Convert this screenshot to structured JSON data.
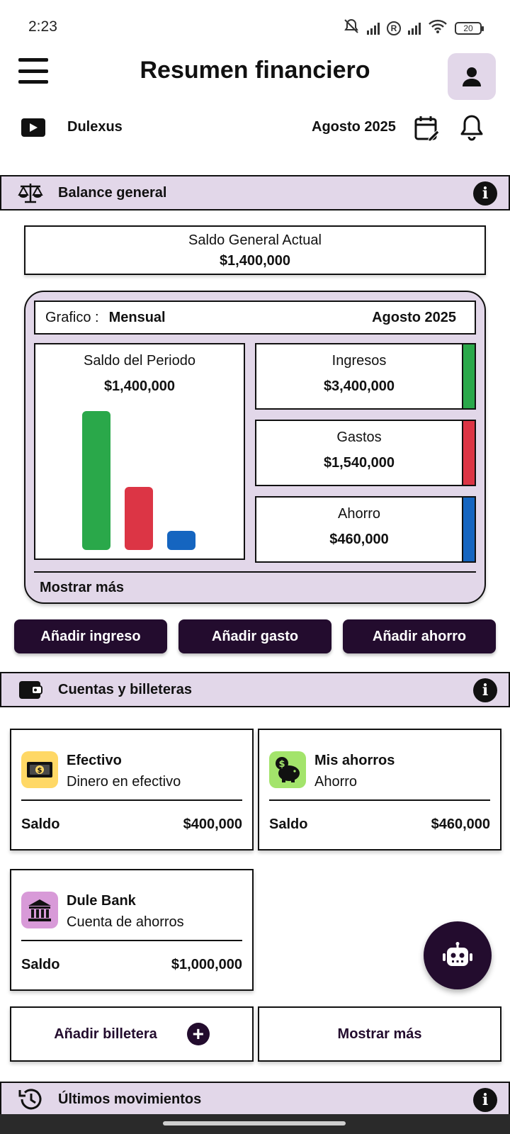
{
  "status_bar": {
    "time": "2:23",
    "battery": "20"
  },
  "header": {
    "title": "Resumen financiero"
  },
  "user": {
    "name": "Dulexus",
    "period": "Agosto 2025"
  },
  "balance_section": {
    "title": "Balance general",
    "current_label": "Saldo General Actual",
    "current_value": "$1,400,000",
    "chart": {
      "grafico_label": "Grafico :",
      "grafico_type": "Mensual",
      "period": "Agosto  2025",
      "saldo_label": "Saldo del Periodo",
      "saldo_value": "$1,400,000",
      "stats": [
        {
          "label": "Ingresos",
          "value": "$3,400,000",
          "color": "#2aa84a"
        },
        {
          "label": "Gastos",
          "value": "$1,540,000",
          "color": "#dc3545"
        },
        {
          "label": "Ahorro",
          "value": "$460,000",
          "color": "#1565c0"
        }
      ],
      "show_more": "Mostrar más"
    }
  },
  "chart_data": {
    "type": "bar",
    "categories": [
      "Ingresos",
      "Gastos",
      "Ahorro"
    ],
    "values": [
      3400000,
      1540000,
      460000
    ],
    "colors": [
      "#2aa84a",
      "#dc3545",
      "#1565c0"
    ],
    "title": "Saldo del Periodo",
    "ylim": [
      0,
      3400000
    ]
  },
  "actions": {
    "add_income": "Añadir ingreso",
    "add_expense": "Añadir gasto",
    "add_saving": "Añadir ahorro"
  },
  "wallets_section": {
    "title": "Cuentas y billeteras",
    "wallets": [
      {
        "name": "Efectivo",
        "desc": "Dinero en efectivo",
        "saldo_label": "Saldo",
        "saldo": "$400,000",
        "icon": "cash-icon",
        "icon_bg": "#ffd866"
      },
      {
        "name": "Mis ahorros",
        "desc": "Ahorro",
        "saldo_label": "Saldo",
        "saldo": "$460,000",
        "icon": "piggy-bank-icon",
        "icon_bg": "#a3e46b"
      },
      {
        "name": "Dule Bank",
        "desc": "Cuenta de ahorros",
        "saldo_label": "Saldo",
        "saldo": "$1,000,000",
        "icon": "bank-icon",
        "icon_bg": "#d89ad8"
      }
    ],
    "add_wallet": "Añadir billetera",
    "show_more": "Mostrar más"
  },
  "movements_section": {
    "title": "Últimos movimientos"
  }
}
